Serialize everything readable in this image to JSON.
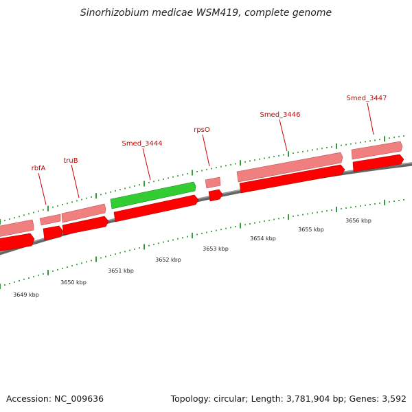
{
  "title": "Sinorhizobium medicae WSM419, complete genome",
  "footer": {
    "accession": "Accession: NC_009636",
    "summary": "Topology: circular; Length: 3,781,904 bp; Genes: 3,592"
  },
  "colors": {
    "gene_red": "#ff0000",
    "gene_pink": "#f08080",
    "gene_green": "#33cc33",
    "backbone": "#888888",
    "tick": "#008000",
    "label": "#cc0000"
  },
  "gene_labels": [
    "rbfA",
    "truB",
    "Smed_3444",
    "rpsO",
    "Smed_3446",
    "Smed_3447"
  ],
  "scale_labels": [
    "3649 kbp",
    "3650 kbp",
    "3651 kbp",
    "3652 kbp",
    "3653 kbp",
    "3654 kbp",
    "3655 kbp",
    "3656 kbp"
  ]
}
